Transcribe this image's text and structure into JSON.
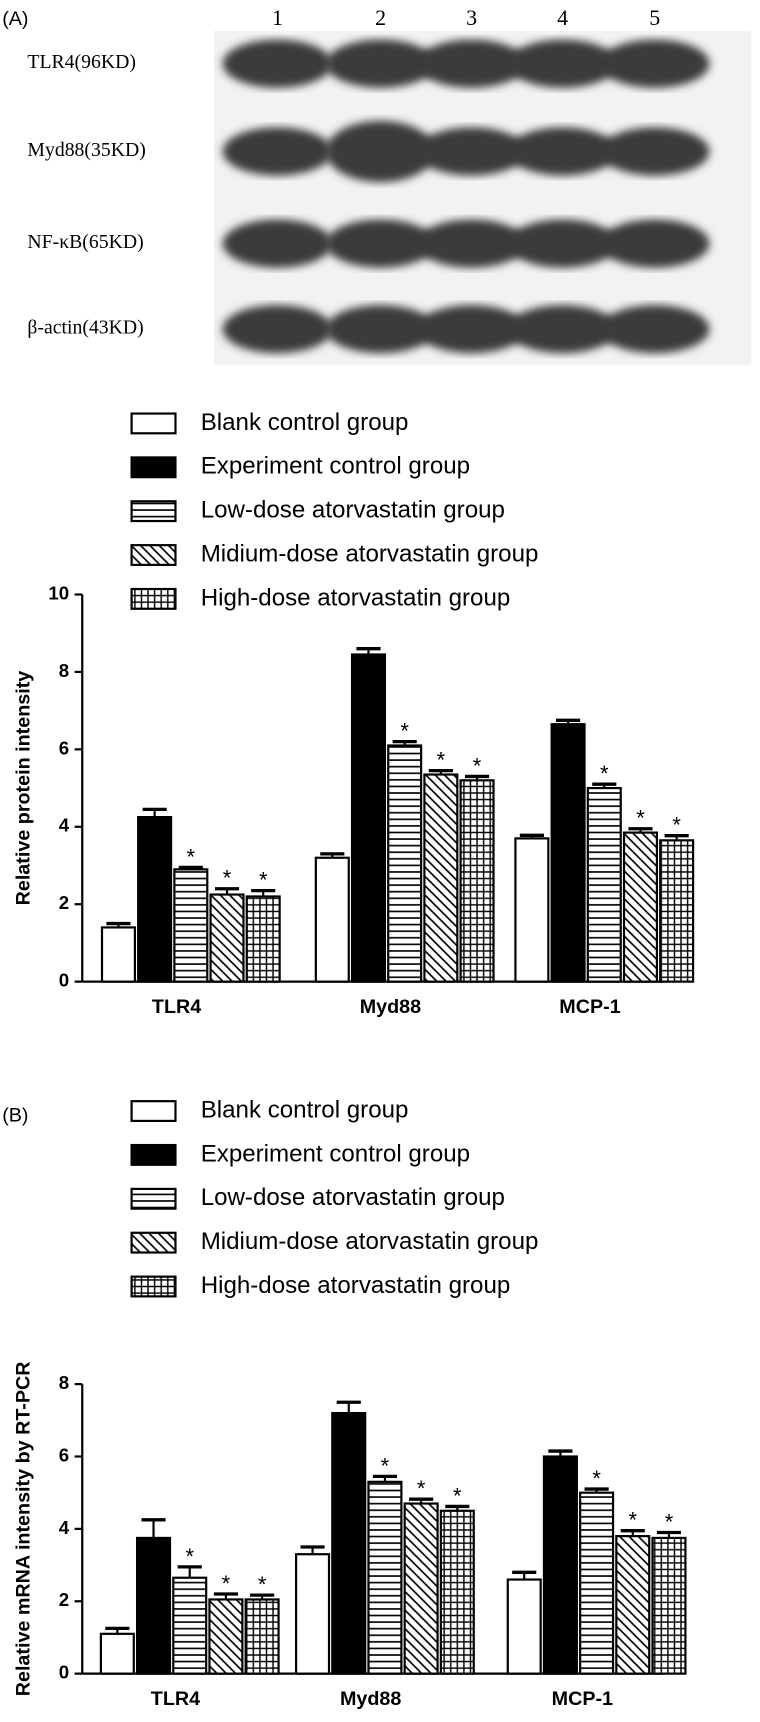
{
  "panel_a": {
    "label": "(A)",
    "lanes": [
      "1",
      "2",
      "3",
      "4",
      "5"
    ],
    "bands": [
      "TLR4(96KD)",
      "Myd88(35KD)",
      "NF-κB(65KD)",
      "β-actin(43KD)"
    ]
  },
  "panel_b": {
    "label": "(B)"
  },
  "chart_data": [
    {
      "type": "bar",
      "y_label": "Relative protein intensity",
      "categories": [
        "TLR4",
        "Myd88",
        "MCP-1"
      ],
      "ylim": [
        0,
        10
      ],
      "yticks": [
        0,
        2,
        4,
        6,
        8,
        10
      ],
      "series": [
        {
          "name": "Blank control group",
          "color": "#ffffff",
          "pattern": "open",
          "values": [
            1.4,
            3.2,
            3.7
          ],
          "errors": [
            0.1,
            0.1,
            0.08
          ]
        },
        {
          "name": "Experiment control group",
          "color": "#000000",
          "pattern": "solid",
          "values": [
            4.25,
            8.45,
            6.65
          ],
          "errors": [
            0.2,
            0.15,
            0.1
          ]
        },
        {
          "name": "Low-dose atorvastatin group",
          "color": "#ffffff",
          "pattern": "horizontal",
          "values": [
            2.9,
            6.1,
            5.0
          ],
          "errors": [
            0.05,
            0.1,
            0.1
          ],
          "annotation": "*"
        },
        {
          "name": "Midium-dose atorvastatin group",
          "color": "#ffffff",
          "pattern": "diagonal",
          "values": [
            2.25,
            5.35,
            3.85
          ],
          "errors": [
            0.15,
            0.1,
            0.1
          ],
          "annotation": "*"
        },
        {
          "name": "High-dose atorvastatin group",
          "color": "#ffffff",
          "pattern": "grid",
          "values": [
            2.2,
            5.2,
            3.65
          ],
          "errors": [
            0.15,
            0.1,
            0.12
          ],
          "annotation": "*"
        }
      ]
    },
    {
      "type": "bar",
      "y_label": "Relative mRNA intensity by RT-PCR",
      "categories": [
        "TLR4",
        "Myd88",
        "MCP-1"
      ],
      "ylim": [
        0,
        8
      ],
      "yticks": [
        0,
        2,
        4,
        6,
        8
      ],
      "series": [
        {
          "name": "Blank control group",
          "color": "#ffffff",
          "pattern": "open",
          "values": [
            1.1,
            3.3,
            2.6
          ],
          "errors": [
            0.15,
            0.2,
            0.2
          ]
        },
        {
          "name": "Experiment control group",
          "color": "#000000",
          "pattern": "solid",
          "values": [
            3.75,
            7.2,
            6.0
          ],
          "errors": [
            0.5,
            0.3,
            0.15
          ]
        },
        {
          "name": "Low-dose atorvastatin group",
          "color": "#ffffff",
          "pattern": "horizontal",
          "values": [
            2.65,
            5.3,
            5.0
          ],
          "errors": [
            0.3,
            0.15,
            0.1
          ],
          "annotation": "*"
        },
        {
          "name": "Midium-dose atorvastatin group",
          "color": "#ffffff",
          "pattern": "diagonal",
          "values": [
            2.05,
            4.7,
            3.8
          ],
          "errors": [
            0.15,
            0.12,
            0.15
          ],
          "annotation": "*"
        },
        {
          "name": "High-dose atorvastatin group",
          "color": "#ffffff",
          "pattern": "grid",
          "values": [
            2.05,
            4.5,
            3.75
          ],
          "errors": [
            0.12,
            0.12,
            0.15
          ],
          "annotation": "*"
        }
      ]
    }
  ]
}
